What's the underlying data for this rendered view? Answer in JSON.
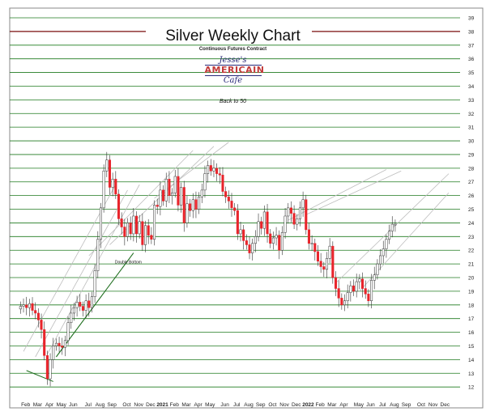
{
  "header": {
    "title": "Silver Weekly Chart",
    "subtitle": "Continuous Futures Contract",
    "logo_top": "Jesse's",
    "logo_mid": "AMERICAIN",
    "logo_bot": "Cafe",
    "tagline": "Back to 50"
  },
  "colors": {
    "up": "#ffffff",
    "down": "#e8242b",
    "grid": "#1f7a1f",
    "channel": "#bdbdbd",
    "trend": "#1f6e1f",
    "line38": "#7a0d0d"
  },
  "chart_data": {
    "type": "candlestick",
    "ylim": [
      11,
      39
    ],
    "yticks": [
      12,
      13,
      14,
      15,
      16,
      17,
      18,
      19,
      20,
      21,
      22,
      23,
      24,
      25,
      26,
      27,
      28,
      29,
      30,
      31,
      32,
      33,
      34,
      35,
      36,
      37,
      38,
      39
    ],
    "ylabels": [
      "12",
      "13",
      "14",
      "15",
      "16",
      "17",
      "18",
      "19",
      "20",
      "21",
      "22",
      "23",
      "24",
      "25",
      "26",
      "27",
      "28",
      "29",
      "30",
      "31",
      "32",
      "33",
      "34",
      "35",
      "36",
      "37",
      "38",
      "39"
    ],
    "weeks": 100,
    "xticks": [
      {
        "week": 1,
        "label": "Feb"
      },
      {
        "week": 5,
        "label": "Mar"
      },
      {
        "week": 9,
        "label": "Apr"
      },
      {
        "week": 13,
        "label": "May"
      },
      {
        "week": 17,
        "label": "Jun"
      },
      {
        "week": 22,
        "label": "Jul"
      },
      {
        "week": 26,
        "label": "Aug"
      },
      {
        "week": 30,
        "label": "Sep"
      },
      {
        "week": 35,
        "label": "Oct"
      },
      {
        "week": 39,
        "label": "Nov"
      },
      {
        "week": 43,
        "label": "Dec"
      },
      {
        "week": 47,
        "label": "2021"
      },
      {
        "week": 51,
        "label": "Feb"
      },
      {
        "week": 55,
        "label": "Mar"
      },
      {
        "week": 59,
        "label": "Apr"
      },
      {
        "week": 63,
        "label": "May"
      },
      {
        "week": 68,
        "label": "Jun"
      },
      {
        "week": 72,
        "label": "Jul"
      },
      {
        "week": 76,
        "label": "Aug"
      },
      {
        "week": 80,
        "label": "Sep"
      },
      {
        "week": 84,
        "label": "Oct"
      },
      {
        "week": 88,
        "label": "Nov"
      },
      {
        "week": 92,
        "label": "Dec"
      },
      {
        "week": 96,
        "label": "2022"
      },
      {
        "week": 100,
        "label": "Feb"
      },
      {
        "week": 104,
        "label": "Mar"
      },
      {
        "week": 108,
        "label": "Apr"
      },
      {
        "week": 113,
        "label": "May"
      },
      {
        "week": 117,
        "label": "Jun"
      },
      {
        "week": 121,
        "label": "Jul"
      },
      {
        "week": 125,
        "label": "Aug"
      },
      {
        "week": 129,
        "label": "Sep"
      },
      {
        "week": 134,
        "label": "Oct"
      },
      {
        "week": 138,
        "label": "Nov"
      },
      {
        "week": 142,
        "label": "Dec"
      }
    ],
    "total_weeks": 146,
    "closes": [
      17.9,
      18.0,
      17.8,
      18.1,
      17.6,
      17.4,
      16.9,
      16.2,
      14.3,
      12.6,
      14.0,
      15.0,
      15.2,
      15.0,
      14.9,
      15.4,
      16.7,
      17.4,
      17.8,
      18.2,
      17.9,
      17.6,
      18.3,
      17.8,
      18.6,
      20.5,
      22.8,
      25.1,
      27.8,
      28.6,
      26.6,
      27.2,
      26.1,
      24.3,
      23.7,
      23.0,
      24.0,
      23.2,
      24.5,
      23.2,
      24.1,
      22.4,
      23.8,
      23.1,
      22.8,
      25.3,
      25.2,
      26.4,
      25.6,
      27.2,
      26.0,
      26.2,
      27.4,
      25.3,
      26.6,
      24.0,
      25.4,
      24.9,
      25.7,
      25.0,
      25.9,
      26.4,
      27.6,
      28.2,
      27.8,
      28.0,
      27.6,
      27.5,
      26.3,
      25.9,
      25.6,
      25.1,
      24.9,
      23.2,
      23.5,
      22.7,
      22.4,
      21.8,
      22.5,
      23.0,
      24.1,
      23.6,
      24.8,
      23.2,
      22.5,
      22.9,
      23.1,
      22.0,
      23.3,
      24.5,
      25.1,
      24.7,
      23.9,
      24.3,
      25.1,
      25.7,
      23.5,
      22.5,
      22.5,
      21.9,
      21.2,
      20.8,
      20.6,
      21.4,
      22.3,
      20.0,
      19.2,
      18.5,
      18.0,
      18.3,
      18.9,
      19.4,
      19.0,
      19.7,
      19.9,
      19.2,
      18.8,
      18.3,
      19.8,
      20.2,
      21.0,
      21.6,
      22.1,
      22.8,
      23.4,
      23.9,
      23.9
    ],
    "annotations": [
      {
        "text": "Double Bottom",
        "week": 37,
        "price": 21.5
      },
      {
        "text": "2022",
        "week": 96,
        "price": 11.6
      }
    ]
  }
}
